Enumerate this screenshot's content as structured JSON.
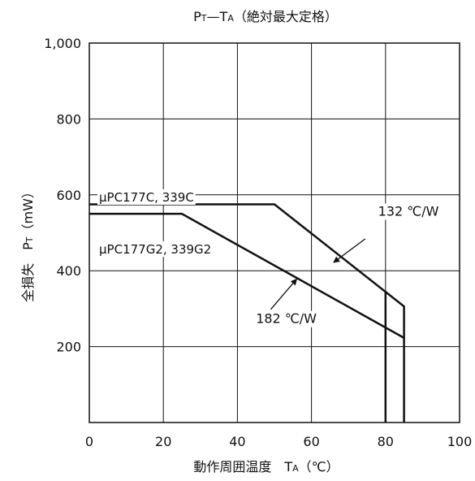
{
  "chart_data": {
    "type": "line",
    "title": "Pᴛ—Tᴀ（絶対最大定格）",
    "title_parts": {
      "p": "P",
      "p_sub": "T",
      "dash": "—",
      "t": "T",
      "t_sub": "A",
      "rest": "（絶対最大定格）"
    },
    "xlabel": "動作周囲温度　Tᴀ（℃）",
    "xlabel_parts": {
      "main": "動作周囲温度",
      "t": "T",
      "t_sub": "A",
      "unit": "（℃）"
    },
    "ylabel": "全損失　Pᴛ（mW）",
    "ylabel_parts": {
      "main": "全損失",
      "p": "P",
      "p_sub": "T",
      "unit": "（mW）"
    },
    "xlim": [
      0,
      100
    ],
    "ylim": [
      0,
      1000
    ],
    "x_ticks": [
      0,
      20,
      40,
      60,
      80,
      100
    ],
    "x_tick_labels": [
      "0",
      "20",
      "40",
      "60",
      "80",
      "100"
    ],
    "y_ticks": [
      200,
      400,
      600,
      800,
      1000
    ],
    "y_tick_labels": [
      "200",
      "400",
      "600",
      "800",
      "1,000"
    ],
    "grid": true,
    "series": [
      {
        "name": "μPC177C, 339C",
        "points": [
          [
            0,
            575
          ],
          [
            50,
            575
          ],
          [
            85,
            306
          ],
          [
            85,
            0
          ]
        ]
      },
      {
        "name": "μPC177G2, 339G2",
        "points": [
          [
            0,
            550
          ],
          [
            25,
            550
          ],
          [
            85,
            223
          ]
        ]
      }
    ],
    "extra_lines": [
      {
        "points": [
          [
            80,
            345
          ],
          [
            80,
            0
          ]
        ]
      }
    ],
    "annotations": [
      {
        "text": "132 ℃/W",
        "text_at": [
          78,
          545
        ],
        "arrow_from": [
          74.5,
          484
        ],
        "arrow_to": [
          66,
          422
        ]
      },
      {
        "text": "182 ℃/W",
        "text_at": [
          45,
          262
        ],
        "arrow_from": [
          49,
          298
        ],
        "arrow_to": [
          56,
          378
        ]
      }
    ]
  }
}
